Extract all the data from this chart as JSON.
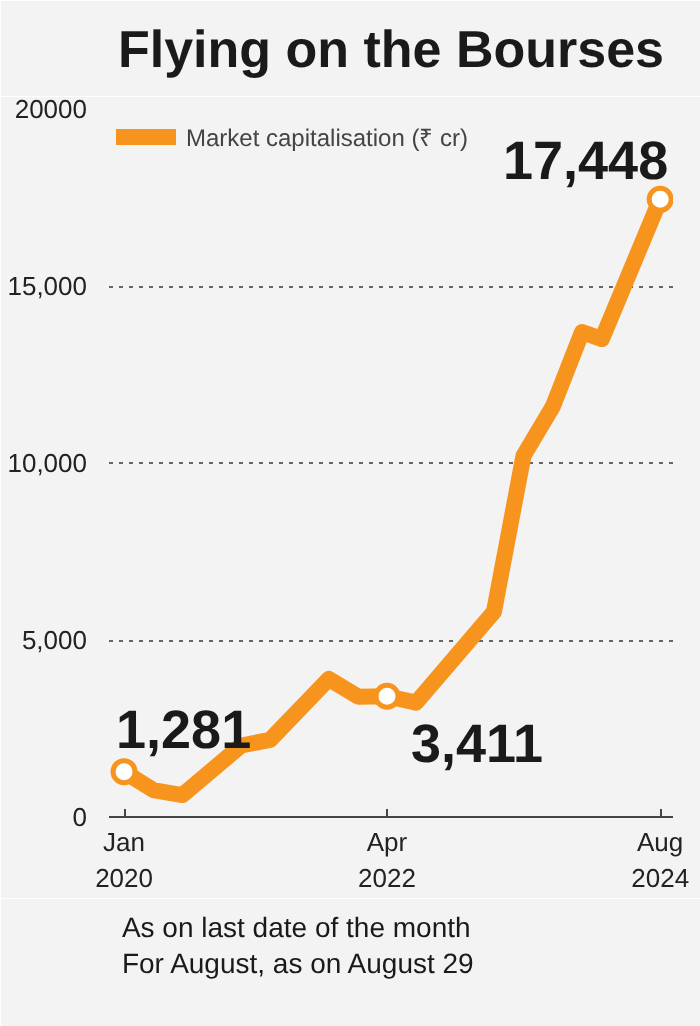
{
  "chart_data": {
    "type": "line",
    "title": "Flying on the Bourses",
    "x": [
      "2020-01",
      "2020-04",
      "2020-07",
      "2021-01",
      "2021-04",
      "2021-10",
      "2022-01",
      "2022-04",
      "2022-07",
      "2023-03",
      "2023-06",
      "2023-09",
      "2023-12",
      "2024-02",
      "2024-08"
    ],
    "series": [
      {
        "name": "Market capitalisation (₹ cr)",
        "color": "#f7941d",
        "values": [
          1281,
          760,
          620,
          2020,
          2180,
          3900,
          3400,
          3411,
          3230,
          5800,
          10200,
          11600,
          13700,
          13500,
          17448
        ],
        "value_labels": [
          "1,281",
          null,
          null,
          null,
          null,
          null,
          null,
          "3,411",
          null,
          null,
          null,
          null,
          null,
          null,
          "17,448"
        ]
      }
    ],
    "xlim": [
      "2019-11-15",
      "2024-09-10"
    ],
    "xticks": [
      {
        "value": "2020-01",
        "label": "Jan\n2020"
      },
      {
        "value": "2022-04",
        "label": "Apr\n2022"
      },
      {
        "value": "2024-08",
        "label": "Aug\n2024"
      }
    ],
    "ylim": [
      0,
      20000
    ],
    "yticks": [
      0,
      {
        "value": 5000,
        "label": "5,000"
      },
      {
        "value": 10000,
        "label": "10,000"
      },
      {
        "value": 15000,
        "label": "15,000"
      },
      20000
    ],
    "grid": "y",
    "legend": "top left",
    "line_style": "solid",
    "annotations": [
      "As on last date of the month",
      "For August, as on August 29"
    ]
  }
}
